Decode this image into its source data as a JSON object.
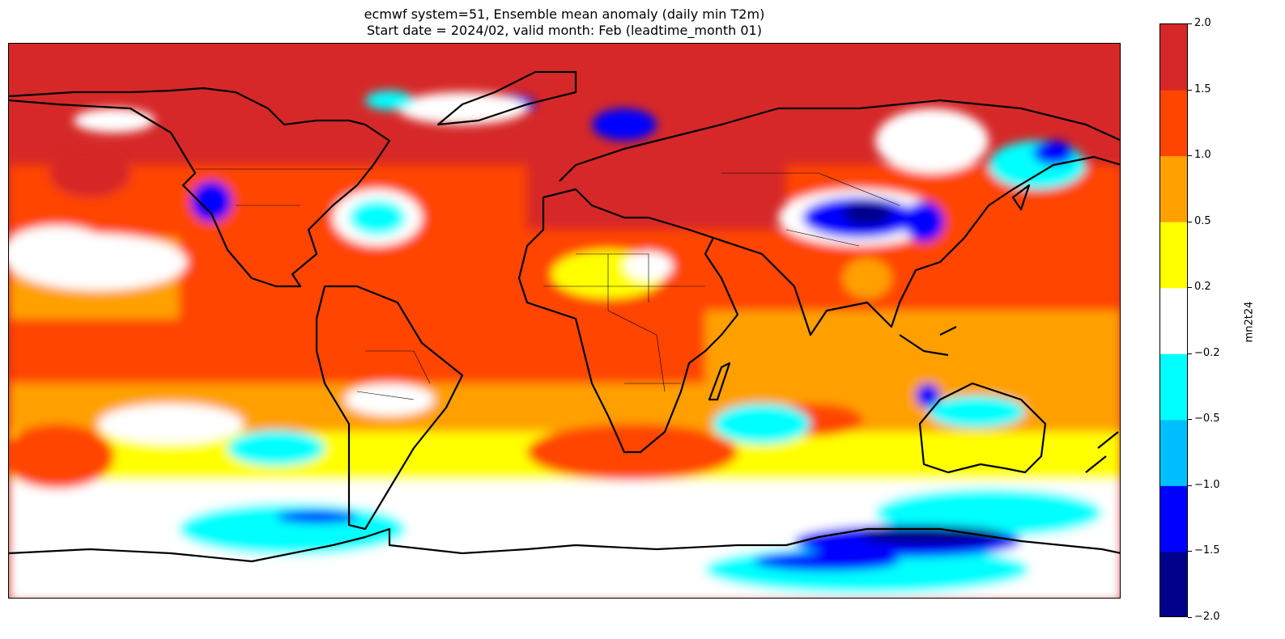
{
  "title": {
    "line1": "ecmwf system=51, Ensemble mean anomaly (daily min T2m)",
    "line2": "Start date = 2024/02, valid month: Feb (leadtime_month 01)"
  },
  "colorbar": {
    "label": "mn2t24",
    "ticks": [
      "2.0",
      "1.5",
      "1.0",
      "0.5",
      "0.2",
      "−0.2",
      "−0.5",
      "−1.0",
      "−1.5",
      "−2.0"
    ],
    "bounds": [
      2.0,
      1.5,
      1.0,
      0.5,
      0.2,
      -0.2,
      -0.5,
      -1.0,
      -1.5,
      -2.0
    ],
    "colors": [
      "#d62828",
      "#ff4500",
      "#ffa000",
      "#ffff00",
      "#ffffff",
      "#00ffff",
      "#00bfff",
      "#0000ff",
      "#00008b"
    ]
  },
  "map": {
    "projection": "PlateCarree",
    "lon_range": [
      -180,
      180
    ],
    "lat_range": [
      -90,
      90
    ],
    "coastlines": true,
    "borders": true
  }
}
